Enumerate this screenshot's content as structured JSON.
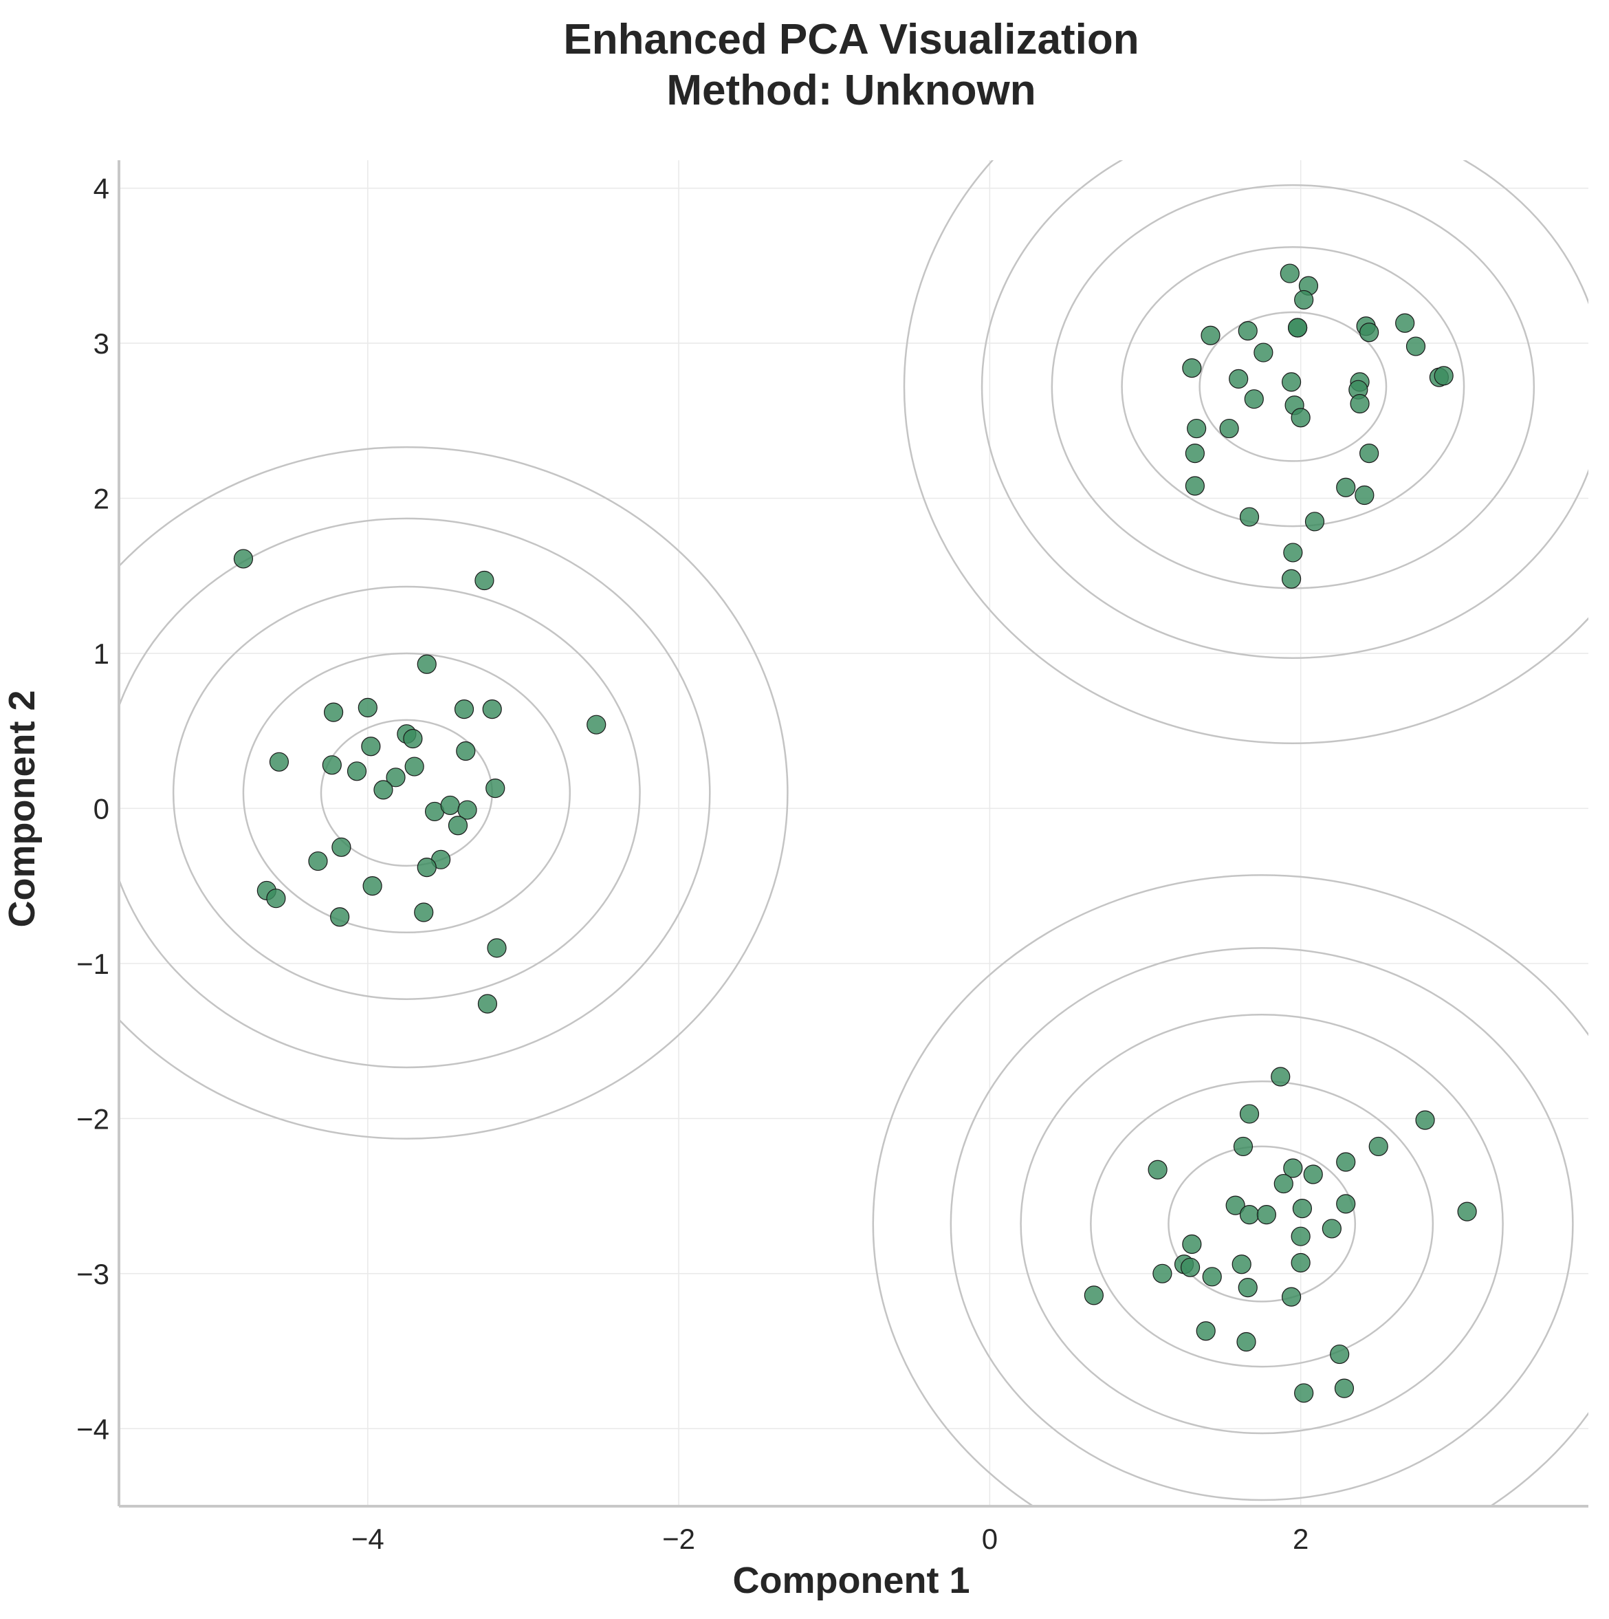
{
  "chart_data": {
    "type": "scatter",
    "title": "Enhanced PCA Visualization",
    "subtitle": "Method: Unknown",
    "xlabel": "Component 1",
    "ylabel": "Component 2",
    "xlim": [
      -5.6,
      3.85
    ],
    "ylim": [
      -4.5,
      4.18
    ],
    "xticks": [
      -4,
      -2,
      0,
      2
    ],
    "yticks": [
      -4,
      -3,
      -2,
      -1,
      0,
      1,
      2,
      3,
      4
    ],
    "xtick_labels": [
      "−4",
      "−2",
      "0",
      "2"
    ],
    "ytick_labels": [
      "−4",
      "−3",
      "−2",
      "−1",
      "0",
      "1",
      "2",
      "3",
      "4"
    ],
    "grid": true,
    "point_color": "#3c8c5f",
    "contour_color": "#c4c4c4",
    "contours": [
      {
        "cx": -3.75,
        "cy": 0.1,
        "radii": [
          [
            0.55,
            0.47
          ],
          [
            1.05,
            0.9
          ],
          [
            1.5,
            1.33
          ],
          [
            1.95,
            1.77
          ],
          [
            2.45,
            2.23
          ]
        ]
      },
      {
        "cx": 1.95,
        "cy": 2.72,
        "radii": [
          [
            0.6,
            0.48
          ],
          [
            1.1,
            0.9
          ],
          [
            1.55,
            1.3
          ],
          [
            2.0,
            1.75
          ],
          [
            2.5,
            2.3
          ]
        ]
      },
      {
        "cx": 1.75,
        "cy": -2.68,
        "radii": [
          [
            0.6,
            0.5
          ],
          [
            1.1,
            0.92
          ],
          [
            1.55,
            1.35
          ],
          [
            2.0,
            1.78
          ],
          [
            2.5,
            2.25
          ]
        ]
      }
    ],
    "series": [
      {
        "x": [
          -4.8,
          -3.25,
          -3.62,
          -4.22,
          -4.0,
          -3.38,
          -3.2,
          -2.53,
          -3.75,
          -3.71,
          -3.98,
          -3.37,
          -4.57,
          -4.23,
          -4.07,
          -3.7,
          -3.82,
          -3.9,
          -3.18,
          -3.57,
          -3.47,
          -3.36,
          -3.42,
          -4.17,
          -4.32,
          -3.53,
          -3.62,
          -3.97,
          -4.65,
          -4.59,
          -3.64,
          -4.18,
          -3.17,
          -3.23
        ],
        "y": [
          1.61,
          1.47,
          0.93,
          0.62,
          0.65,
          0.64,
          0.64,
          0.54,
          0.48,
          0.45,
          0.4,
          0.37,
          0.3,
          0.28,
          0.24,
          0.27,
          0.2,
          0.12,
          0.13,
          -0.02,
          0.02,
          -0.01,
          -0.11,
          -0.25,
          -0.34,
          -0.33,
          -0.38,
          -0.5,
          -0.53,
          -0.58,
          -0.67,
          -0.7,
          -0.9,
          -1.26
        ]
      },
      {
        "x": [
          1.93,
          2.05,
          2.02,
          1.98,
          1.66,
          1.42,
          1.98,
          2.42,
          2.44,
          2.67,
          2.74,
          1.3,
          1.76,
          1.6,
          1.94,
          2.38,
          2.37,
          2.89,
          2.92,
          1.7,
          1.96,
          2.0,
          2.38,
          1.54,
          1.33,
          1.32,
          2.44,
          1.32,
          2.29,
          2.41,
          1.67,
          2.09,
          1.95,
          1.94
        ],
        "y": [
          3.45,
          3.37,
          3.28,
          3.1,
          3.08,
          3.05,
          3.1,
          3.11,
          3.07,
          3.13,
          2.98,
          2.84,
          2.94,
          2.77,
          2.75,
          2.75,
          2.7,
          2.78,
          2.79,
          2.64,
          2.6,
          2.52,
          2.61,
          2.45,
          2.45,
          2.29,
          2.29,
          2.08,
          2.07,
          2.02,
          1.88,
          1.85,
          1.65,
          1.48
        ]
      },
      {
        "x": [
          1.87,
          1.67,
          2.8,
          1.63,
          2.5,
          2.29,
          1.08,
          1.95,
          2.08,
          1.89,
          1.58,
          1.67,
          2.01,
          1.78,
          2.29,
          3.07,
          2.2,
          2.0,
          1.3,
          1.25,
          1.29,
          1.62,
          2.0,
          1.11,
          1.43,
          1.66,
          0.67,
          1.94,
          1.39,
          1.65,
          2.25,
          2.28,
          2.02
        ],
        "y": [
          -1.73,
          -1.97,
          -2.01,
          -2.18,
          -2.18,
          -2.28,
          -2.33,
          -2.32,
          -2.36,
          -2.42,
          -2.56,
          -2.62,
          -2.58,
          -2.62,
          -2.55,
          -2.6,
          -2.71,
          -2.76,
          -2.81,
          -2.94,
          -2.96,
          -2.94,
          -2.93,
          -3.0,
          -3.02,
          -3.09,
          -3.14,
          -3.15,
          -3.37,
          -3.44,
          -3.52,
          -3.74,
          -3.77
        ]
      }
    ]
  }
}
